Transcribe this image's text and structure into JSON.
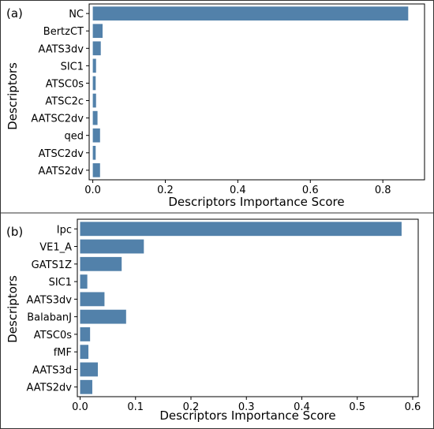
{
  "chart_data": [
    {
      "type": "bar",
      "orientation": "horizontal",
      "panel_label": "(a)",
      "xlabel": "Descriptors Importance Score",
      "ylabel": "Descriptors",
      "categories": [
        "NC",
        "BertzCT",
        "AATS3dv",
        "SIC1",
        "ATSC0s",
        "ATSC2c",
        "AATSC2dv",
        "qed",
        "ATSC2dv",
        "AATS2dv"
      ],
      "values": [
        0.87,
        0.027,
        0.022,
        0.009,
        0.008,
        0.009,
        0.013,
        0.02,
        0.008,
        0.02
      ],
      "xlim": [
        -0.01,
        0.915
      ],
      "xticks": [
        0.0,
        0.2,
        0.4,
        0.6,
        0.8
      ],
      "xtick_labels": [
        "0.0",
        "0.2",
        "0.4",
        "0.6",
        "0.8"
      ],
      "bar_color": "#5281aa",
      "grid": false
    },
    {
      "type": "bar",
      "orientation": "horizontal",
      "panel_label": "(b)",
      "xlabel": "Descriptors Importance Score",
      "ylabel": "Descriptors",
      "categories": [
        "Ipc",
        "VE1_A",
        "GATS1Z",
        "SIC1",
        "AATS3dv",
        "BalabanJ",
        "ATSC0s",
        "fMF",
        "AATS3d",
        "AATS2dv"
      ],
      "values": [
        0.58,
        0.115,
        0.075,
        0.013,
        0.044,
        0.083,
        0.018,
        0.015,
        0.032,
        0.022
      ],
      "xlim": [
        -0.005,
        0.61
      ],
      "xticks": [
        0.0,
        0.1,
        0.2,
        0.3,
        0.4,
        0.5,
        0.6
      ],
      "xtick_labels": [
        "0.0",
        "0.1",
        "0.2",
        "0.3",
        "0.4",
        "0.5",
        "0.6"
      ],
      "bar_color": "#5281aa",
      "grid": false
    }
  ]
}
